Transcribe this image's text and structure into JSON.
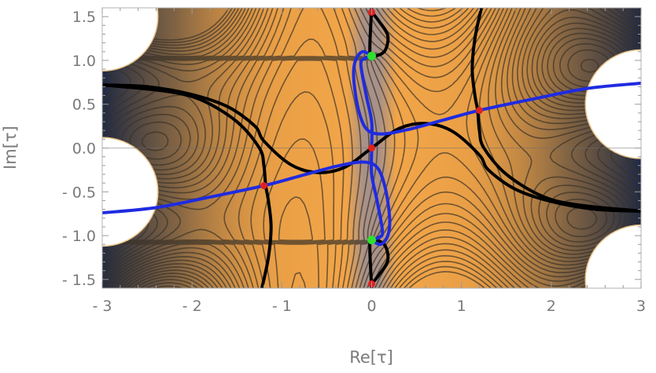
{
  "chart_data": {
    "type": "contour",
    "xlabel": "Re[τ]",
    "ylabel": "Im[τ]",
    "xlim": [
      -3,
      3
    ],
    "ylim": [
      -1.6,
      1.6
    ],
    "x_ticks": [
      {
        "value": -3,
        "label": "- 3"
      },
      {
        "value": -2,
        "label": "- 2"
      },
      {
        "value": -1,
        "label": "- 1"
      },
      {
        "value": 0,
        "label": "0"
      },
      {
        "value": 1,
        "label": "1"
      },
      {
        "value": 2,
        "label": "2"
      },
      {
        "value": 3,
        "label": "3"
      }
    ],
    "y_ticks": [
      {
        "value": 1.5,
        "label": "1.5"
      },
      {
        "value": 1.0,
        "label": "1.0"
      },
      {
        "value": 0.5,
        "label": "0.5"
      },
      {
        "value": 0.0,
        "label": "0.0"
      },
      {
        "value": -0.5,
        "label": "- 0.5"
      },
      {
        "value": -1.0,
        "label": "- 1.0"
      },
      {
        "value": -1.5,
        "label": "- 1.5"
      }
    ],
    "background_colors": {
      "fill": "#f2a548",
      "center_band": "#8e8a9e",
      "edge": "#1f2a44"
    },
    "excluded_regions": [
      {
        "center": [
          -3,
          1.5
        ],
        "radius": 0.62
      },
      {
        "center": [
          -3,
          -0.5
        ],
        "radius": 0.62
      },
      {
        "center": [
          3,
          0.5
        ],
        "radius": 0.62
      },
      {
        "center": [
          3,
          -1.5
        ],
        "radius": 0.62
      }
    ],
    "series": [
      {
        "color": "#000000",
        "curves": [
          [
            [
              -3.0,
              0.72
            ],
            [
              -2.5,
              0.7
            ],
            [
              -2.0,
              0.61
            ],
            [
              -1.6,
              0.47
            ],
            [
              -1.3,
              0.25
            ],
            [
              -1.2,
              0.08
            ],
            [
              -0.9,
              -0.19
            ],
            [
              -0.6,
              -0.28
            ],
            [
              -0.3,
              -0.22
            ],
            [
              0.0,
              0.0
            ],
            [
              0.3,
              0.22
            ],
            [
              0.6,
              0.28
            ],
            [
              0.9,
              0.19
            ],
            [
              1.2,
              -0.08
            ],
            [
              1.3,
              -0.25
            ],
            [
              1.6,
              -0.47
            ],
            [
              2.0,
              -0.61
            ],
            [
              2.5,
              -0.7
            ],
            [
              3.0,
              -0.72
            ]
          ],
          [
            [
              1.22,
              1.59
            ],
            [
              1.15,
              1.25
            ],
            [
              1.12,
              0.9
            ],
            [
              1.15,
              0.6
            ],
            [
              1.18,
              0.43
            ],
            [
              1.2,
              0.2
            ],
            [
              1.25,
              0.0
            ],
            [
              1.5,
              -0.3
            ],
            [
              1.9,
              -0.55
            ],
            [
              2.3,
              -0.65
            ],
            [
              3.0,
              -0.72
            ]
          ],
          [
            [
              -1.22,
              -1.59
            ],
            [
              -1.15,
              -1.25
            ],
            [
              -1.12,
              -0.9
            ],
            [
              -1.15,
              -0.6
            ],
            [
              -1.18,
              -0.43
            ],
            [
              -1.2,
              -0.2
            ],
            [
              -1.25,
              0.0
            ],
            [
              -1.5,
              0.3
            ],
            [
              -1.9,
              0.55
            ],
            [
              -2.3,
              0.65
            ],
            [
              -3.0,
              0.72
            ]
          ],
          [
            [
              0.0,
              1.6
            ],
            [
              -0.02,
              1.15
            ],
            [
              0.0,
              1.05
            ],
            [
              0.14,
              1.1
            ],
            [
              0.18,
              1.28
            ],
            [
              0.08,
              1.45
            ],
            [
              0.0,
              1.55
            ]
          ],
          [
            [
              0.0,
              -1.6
            ],
            [
              -0.02,
              -1.15
            ],
            [
              0.0,
              -1.05
            ],
            [
              0.14,
              -1.1
            ],
            [
              0.18,
              -1.28
            ],
            [
              0.08,
              -1.45
            ],
            [
              0.0,
              -1.55
            ]
          ]
        ]
      },
      {
        "color": "#1f2be0",
        "curves": [
          [
            [
              -3.0,
              -0.74
            ],
            [
              -2.4,
              -0.68
            ],
            [
              -1.8,
              -0.56
            ],
            [
              -1.2,
              -0.43
            ],
            [
              -0.8,
              -0.32
            ],
            [
              -0.4,
              -0.21
            ],
            [
              -0.1,
              -0.16
            ],
            [
              0.06,
              -0.22
            ],
            [
              0.15,
              -0.45
            ],
            [
              0.2,
              -0.8
            ],
            [
              0.18,
              -1.0
            ],
            [
              0.1,
              -1.1
            ],
            [
              0.0,
              -1.05
            ]
          ],
          [
            [
              3.0,
              0.74
            ],
            [
              2.4,
              0.68
            ],
            [
              1.8,
              0.56
            ],
            [
              1.2,
              0.43
            ],
            [
              0.8,
              0.32
            ],
            [
              0.4,
              0.21
            ],
            [
              0.1,
              0.16
            ],
            [
              -0.06,
              0.22
            ],
            [
              -0.15,
              0.45
            ],
            [
              -0.2,
              0.8
            ],
            [
              -0.18,
              1.0
            ],
            [
              -0.1,
              1.1
            ],
            [
              0.0,
              1.05
            ]
          ],
          [
            [
              0.0,
              1.05
            ],
            [
              -0.08,
              1.02
            ],
            [
              -0.12,
              0.95
            ],
            [
              -0.06,
              0.6
            ],
            [
              0.0,
              0.3
            ],
            [
              0.0,
              0.0
            ],
            [
              0.0,
              -0.3
            ],
            [
              0.06,
              -0.6
            ],
            [
              0.12,
              -0.95
            ],
            [
              0.08,
              -1.02
            ],
            [
              0.0,
              -1.05
            ]
          ]
        ]
      }
    ],
    "points": [
      {
        "color": "#e02020",
        "coords": [
          [
            0,
            0
          ],
          [
            1.2,
            0.43
          ],
          [
            -1.2,
            -0.43
          ],
          [
            0,
            1.55
          ],
          [
            0,
            -1.55
          ]
        ]
      },
      {
        "color": "#2ee02e",
        "coords": [
          [
            0,
            1.05
          ],
          [
            0,
            -1.05
          ]
        ]
      }
    ]
  }
}
